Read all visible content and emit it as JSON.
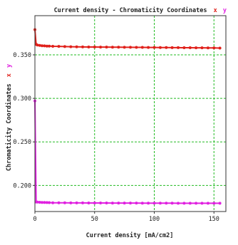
{
  "chart_data": {
    "type": "scatter",
    "title": {
      "prefix": "Current density - Chromaticity Coordinates",
      "marks": [
        "x",
        "y"
      ]
    },
    "xlabel": "Current density [mA/cm2]",
    "ylabel": {
      "prefix": "Chromaticity Coordinates",
      "marks": [
        "x",
        "y"
      ]
    },
    "xlim": [
      0,
      160
    ],
    "ylim": [
      0.17,
      0.395
    ],
    "x_ticks": [
      0,
      50,
      100,
      150
    ],
    "y_ticks": [
      0.2,
      0.25,
      0.3,
      0.35
    ],
    "y_tick_labels": [
      "0.200",
      "0.250",
      "0.300",
      "0.350"
    ],
    "grid": true,
    "grid_style": "dashed",
    "series": [
      {
        "name": "x",
        "color": "#e0201a",
        "x": [
          0,
          1,
          2,
          4,
          6,
          8,
          10,
          12,
          15,
          20,
          25,
          30,
          35,
          40,
          45,
          50,
          55,
          60,
          65,
          70,
          75,
          80,
          85,
          90,
          95,
          100,
          105,
          110,
          115,
          120,
          125,
          130,
          135,
          140,
          145,
          150,
          155
        ],
        "values": [
          0.379,
          0.362,
          0.3612,
          0.3608,
          0.3605,
          0.3603,
          0.3601,
          0.36,
          0.3598,
          0.3597,
          0.3595,
          0.3593,
          0.3592,
          0.3591,
          0.359,
          0.359,
          0.3589,
          0.3589,
          0.3588,
          0.3588,
          0.3587,
          0.3587,
          0.3586,
          0.3586,
          0.3585,
          0.3585,
          0.3584,
          0.3584,
          0.3583,
          0.3583,
          0.3582,
          0.3582,
          0.3581,
          0.3581,
          0.358,
          0.358,
          0.3578
        ]
      },
      {
        "name": "y",
        "color": "#e020e0",
        "x": [
          0,
          1,
          2,
          4,
          6,
          8,
          10,
          12,
          15,
          20,
          25,
          30,
          35,
          40,
          45,
          50,
          55,
          60,
          65,
          70,
          75,
          80,
          85,
          90,
          95,
          100,
          105,
          110,
          115,
          120,
          125,
          130,
          135,
          140,
          145,
          150,
          155
        ],
        "values": [
          0.297,
          0.181,
          0.1808,
          0.1806,
          0.1805,
          0.1804,
          0.1803,
          0.1802,
          0.1801,
          0.18,
          0.18,
          0.1799,
          0.1799,
          0.1799,
          0.1798,
          0.1798,
          0.1798,
          0.1798,
          0.1797,
          0.1797,
          0.1797,
          0.1797,
          0.1797,
          0.1796,
          0.1796,
          0.1796,
          0.1796,
          0.1796,
          0.1796,
          0.1795,
          0.1795,
          0.1795,
          0.1795,
          0.1795,
          0.1795,
          0.1795,
          0.1795
        ]
      }
    ]
  }
}
